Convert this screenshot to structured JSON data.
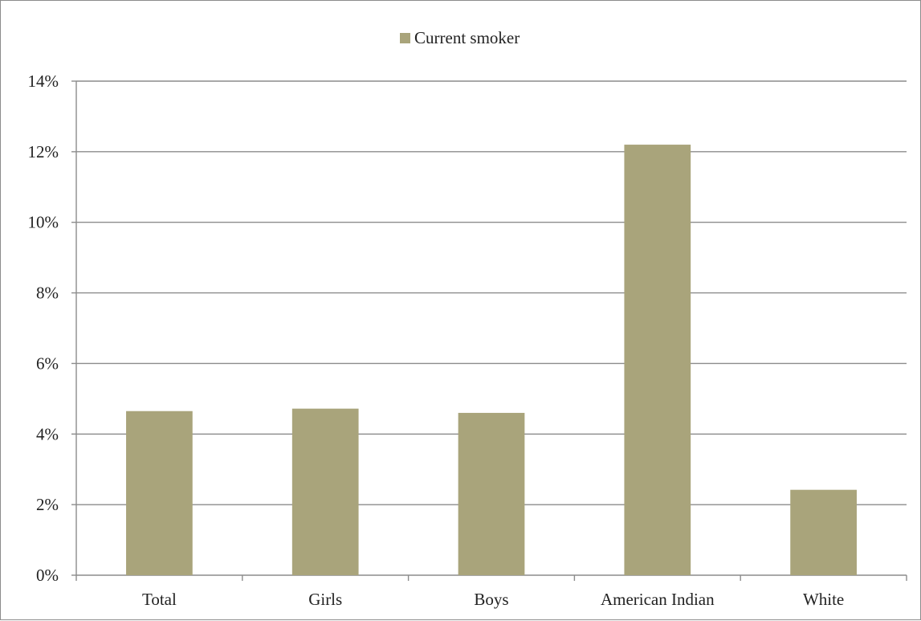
{
  "chart_data": {
    "type": "bar",
    "categories": [
      "Total",
      "Girls",
      "Boys",
      "American Indian",
      "White"
    ],
    "series": [
      {
        "name": "Current smoker",
        "values": [
          4.65,
          4.72,
          4.6,
          12.2,
          2.42
        ],
        "color": "#a9a47b"
      }
    ],
    "y_ticks": [
      "0%",
      "2%",
      "4%",
      "6%",
      "8%",
      "10%",
      "12%",
      "14%"
    ],
    "ylim": [
      0,
      14
    ],
    "y_unit": "%",
    "grid": true,
    "legend_position": "top-center"
  },
  "colors": {
    "bar": "#a9a47b",
    "grid": "#8c8c8c",
    "axis": "#8c8c8c",
    "text": "#222222"
  }
}
